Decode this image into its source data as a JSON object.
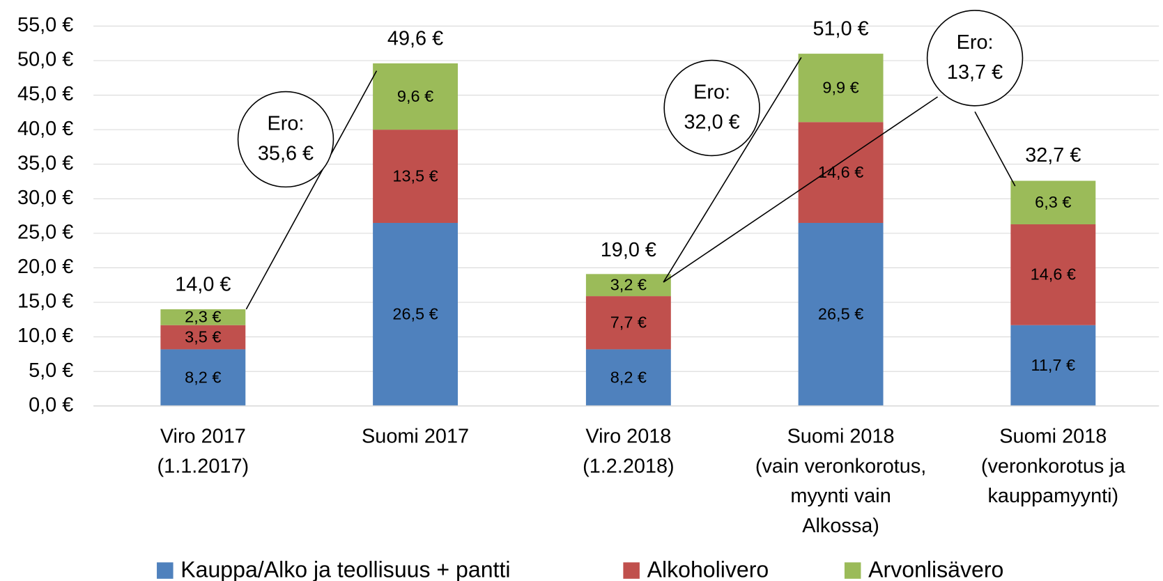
{
  "chart_data": {
    "type": "stacked_bar",
    "categories": [
      "Viro 2017\n(1.1.2017)",
      "Suomi 2017",
      "Viro 2018\n(1.2.2018)",
      "Suomi 2018\n(vain veronkorotus,\nmyynti vain\nAlkossa)",
      "Suomi 2018\n(veronkorotus ja\nkauppamyynti)"
    ],
    "series": [
      {
        "name": "Kauppa/Alko ja teollisuus + pantti",
        "color": "#4f81bd",
        "values": [
          8.2,
          26.5,
          8.2,
          26.5,
          11.7
        ],
        "value_labels": [
          "8,2 €",
          "26,5 €",
          "8,2 €",
          "26,5 €",
          "11,7 €"
        ]
      },
      {
        "name": "Alkoholivero",
        "color": "#c0504d",
        "values": [
          3.5,
          13.5,
          7.7,
          14.6,
          14.6
        ],
        "value_labels": [
          "3,5 €",
          "13,5 €",
          "7,7 €",
          "14,6 €",
          "14,6 €"
        ]
      },
      {
        "name": "Arvonlisävero",
        "color": "#9bbb59",
        "values": [
          2.3,
          9.6,
          3.2,
          9.9,
          6.3
        ],
        "value_labels": [
          "2,3 €",
          "9,6 €",
          "3,2 €",
          "9,9 €",
          "6,3 €"
        ]
      }
    ],
    "totals": {
      "values": [
        14.0,
        49.6,
        19.0,
        51.0,
        32.7
      ],
      "value_labels": [
        "14,0 €",
        "49,6 €",
        "19,0 €",
        "51,0 €",
        "32,7 €"
      ]
    },
    "annotations": [
      "Ero:\n35,6 €",
      "Ero:\n32,0 €",
      "Ero:\n13,7 €"
    ],
    "ylim": [
      0,
      55
    ],
    "yticks": [
      {
        "value": 0,
        "label": "0,0 €"
      },
      {
        "value": 5,
        "label": "5,0 €"
      },
      {
        "value": 10,
        "label": "10,0 €"
      },
      {
        "value": 15,
        "label": "15,0 €"
      },
      {
        "value": 20,
        "label": "20,0 €"
      },
      {
        "value": 25,
        "label": "25,0 €"
      },
      {
        "value": 30,
        "label": "30,0 €"
      },
      {
        "value": 35,
        "label": "35,0 €"
      },
      {
        "value": 40,
        "label": "40,0 €"
      },
      {
        "value": 45,
        "label": "45,0 €"
      },
      {
        "value": 50,
        "label": "50,0 €"
      },
      {
        "value": 55,
        "label": "55,0 €"
      }
    ],
    "grid": true,
    "legend": "bottom"
  }
}
